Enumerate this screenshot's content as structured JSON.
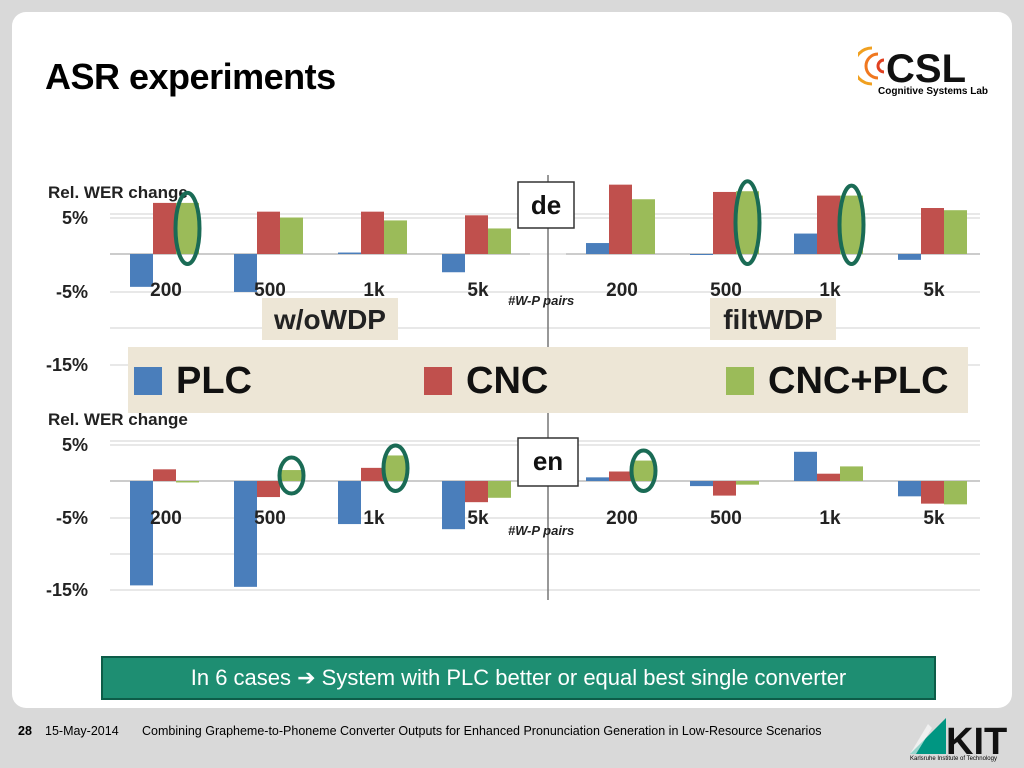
{
  "title": "ASR experiments",
  "csl_logo": {
    "letters": "CSL",
    "subtitle": "Cognitive Systems Lab"
  },
  "kit_logo": {
    "letters": "KIT",
    "subtitle": "Karlsruhe Institute of Technology"
  },
  "callout": "In 6 cases ➔ System with PLC better or equal best single converter",
  "footer": {
    "page": "28",
    "date": "15-May-2014",
    "caption": "Combining Grapheme-to-Phoneme Converter Outputs for Enhanced Pronunciation Generation in Low-Resource Scenarios"
  },
  "colors": {
    "PLC": "#4a7ebb",
    "CNC": "#c0504d",
    "CNC+PLC": "#9bbb59",
    "highlight": "#1a6b55"
  },
  "legend": [
    "PLC",
    "CNC",
    "CNC+PLC"
  ],
  "chart_data": [
    {
      "type": "bar",
      "language": "de",
      "ylabel": "Rel. WER change",
      "yticks": [
        "5%",
        "-5%",
        "-15%"
      ],
      "xlabel": "#W-P pairs",
      "groups": [
        {
          "name": "w/oWDP",
          "categories": [
            "200",
            "500",
            "1k",
            "5k"
          ],
          "series": [
            {
              "name": "PLC",
              "values": [
                -4.5,
                -5.2,
                0.2,
                -2.5
              ]
            },
            {
              "name": "CNC",
              "values": [
                7.0,
                5.8,
                5.8,
                5.3
              ]
            },
            {
              "name": "CNC+PLC",
              "values": [
                7.0,
                5.0,
                4.6,
                3.5
              ]
            }
          ],
          "highlighted": [
            {
              "category": "200",
              "series": "CNC+PLC"
            }
          ]
        },
        {
          "name": "filtWDP",
          "categories": [
            "200",
            "500",
            "1k",
            "5k"
          ],
          "series": [
            {
              "name": "PLC",
              "values": [
                1.5,
                0.0,
                2.8,
                -0.8
              ]
            },
            {
              "name": "CNC",
              "values": [
                9.5,
                8.5,
                8.0,
                6.3
              ]
            },
            {
              "name": "CNC+PLC",
              "values": [
                7.5,
                8.6,
                8.0,
                6.0
              ]
            }
          ],
          "highlighted": [
            {
              "category": "500",
              "series": "CNC+PLC"
            },
            {
              "category": "1k",
              "series": "CNC+PLC"
            }
          ]
        }
      ]
    },
    {
      "type": "bar",
      "language": "en",
      "ylabel": "Rel. WER change",
      "yticks": [
        "5%",
        "-5%",
        "-15%"
      ],
      "xlabel": "#W-P pairs",
      "groups": [
        {
          "name": "w/oWDP",
          "categories": [
            "200",
            "500",
            "1k",
            "5k"
          ],
          "series": [
            {
              "name": "PLC",
              "values": [
                -14.3,
                -14.5,
                -5.9,
                -6.6
              ]
            },
            {
              "name": "CNC",
              "values": [
                1.6,
                -2.2,
                1.8,
                -2.9
              ]
            },
            {
              "name": "CNC+PLC",
              "values": [
                -0.2,
                1.5,
                3.5,
                -2.3
              ]
            }
          ],
          "highlighted": [
            {
              "category": "500",
              "series": "CNC+PLC"
            },
            {
              "category": "1k",
              "series": "CNC+PLC"
            }
          ]
        },
        {
          "name": "filtWDP",
          "categories": [
            "200",
            "500",
            "1k",
            "5k"
          ],
          "series": [
            {
              "name": "PLC",
              "values": [
                0.5,
                -0.7,
                4.0,
                -2.1
              ]
            },
            {
              "name": "CNC",
              "values": [
                1.3,
                -2.0,
                1.0,
                -3.1
              ]
            },
            {
              "name": "CNC+PLC",
              "values": [
                2.8,
                -0.5,
                2.0,
                -3.2
              ]
            }
          ],
          "highlighted": [
            {
              "category": "200",
              "series": "CNC+PLC"
            }
          ]
        }
      ]
    }
  ]
}
